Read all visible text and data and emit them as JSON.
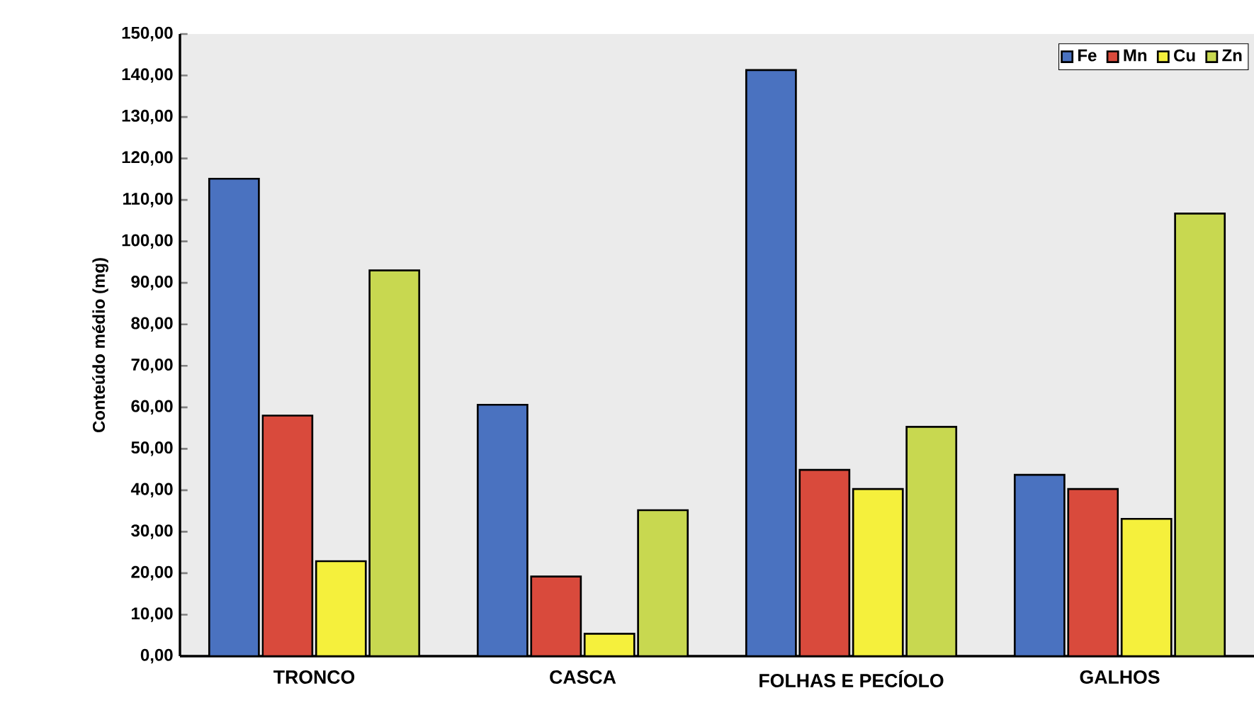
{
  "chart_data": {
    "type": "bar",
    "ylabel": "Conteúdo médio (mg)",
    "categories": [
      "TRONCO",
      "CASCA",
      "FOLHAS E PECÍOLO",
      "GALHOS"
    ],
    "series": [
      {
        "name": "Fe",
        "color": "#4a72c0",
        "values": [
          115.1,
          60.6,
          141.3,
          43.7
        ]
      },
      {
        "name": "Mn",
        "color": "#d94a3c",
        "values": [
          58.0,
          19.2,
          44.9,
          40.3
        ]
      },
      {
        "name": "Cu",
        "color": "#f5f03c",
        "values": [
          22.9,
          5.4,
          40.3,
          33.1
        ]
      },
      {
        "name": "Zn",
        "color": "#c8d850",
        "values": [
          93.0,
          35.2,
          55.3,
          106.7
        ]
      }
    ],
    "ylim": [
      0,
      150
    ],
    "yticks": [
      {
        "value": 0,
        "label": "0,00"
      },
      {
        "value": 10,
        "label": "10,00"
      },
      {
        "value": 20,
        "label": "20,00"
      },
      {
        "value": 30,
        "label": "30,00"
      },
      {
        "value": 40,
        "label": "40,00"
      },
      {
        "value": 50,
        "label": "50,00"
      },
      {
        "value": 60,
        "label": "60,00"
      },
      {
        "value": 70,
        "label": "70,00"
      },
      {
        "value": 80,
        "label": "80,00"
      },
      {
        "value": 90,
        "label": "90,00"
      },
      {
        "value": 100,
        "label": "100,00"
      },
      {
        "value": 110,
        "label": "110,00"
      },
      {
        "value": 120,
        "label": "120,00"
      },
      {
        "value": 130,
        "label": "130,00"
      },
      {
        "value": 140,
        "label": "140,00"
      },
      {
        "value": 150,
        "label": "150,00"
      }
    ],
    "grid": false,
    "legend": "top right"
  }
}
